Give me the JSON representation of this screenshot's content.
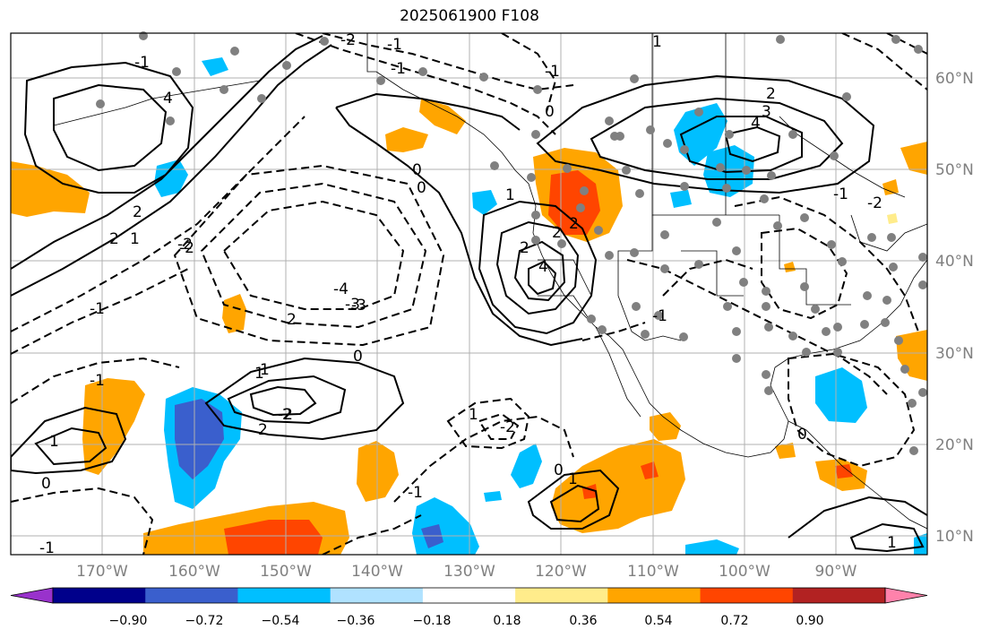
{
  "title": "2025061900 F108",
  "lat_labels": [
    "60°N",
    "50°N",
    "40°N",
    "30°N",
    "20°N",
    "10°N"
  ],
  "lon_labels": [
    "170°W",
    "160°W",
    "150°W",
    "140°W",
    "130°W",
    "120°W",
    "110°W",
    "100°W",
    "90°W"
  ],
  "colorbar": {
    "ticks": [
      "−0.90",
      "−0.72",
      "−0.54",
      "−0.36",
      "−0.18",
      "0.18",
      "0.36",
      "0.54",
      "0.72",
      "0.90"
    ],
    "colors": [
      "#9932CC",
      "#00008B",
      "#3A5FCD",
      "#00BFFF",
      "#B0E2FF",
      "#FFFFFF",
      "#FFEC8B",
      "#FFA500",
      "#FF4500",
      "#B22222",
      "#FF82AB"
    ]
  },
  "contour_labels": [
    "2",
    "2",
    "1",
    "-1",
    "4",
    "-1",
    "-2",
    "1",
    "2",
    "-3",
    "4",
    "2",
    "2",
    "1",
    "0",
    "2",
    "-2",
    "-4",
    "-3",
    "2",
    "-1",
    "-1",
    "1",
    "2",
    "3",
    "4",
    "-2",
    "0",
    "1",
    "-2",
    "2",
    "0",
    "1",
    "0",
    "-1",
    "-1",
    "-2",
    "1",
    "-1",
    "0",
    "1",
    "-2",
    "0",
    "-1",
    "1",
    "-1",
    "-1",
    "0"
  ]
}
